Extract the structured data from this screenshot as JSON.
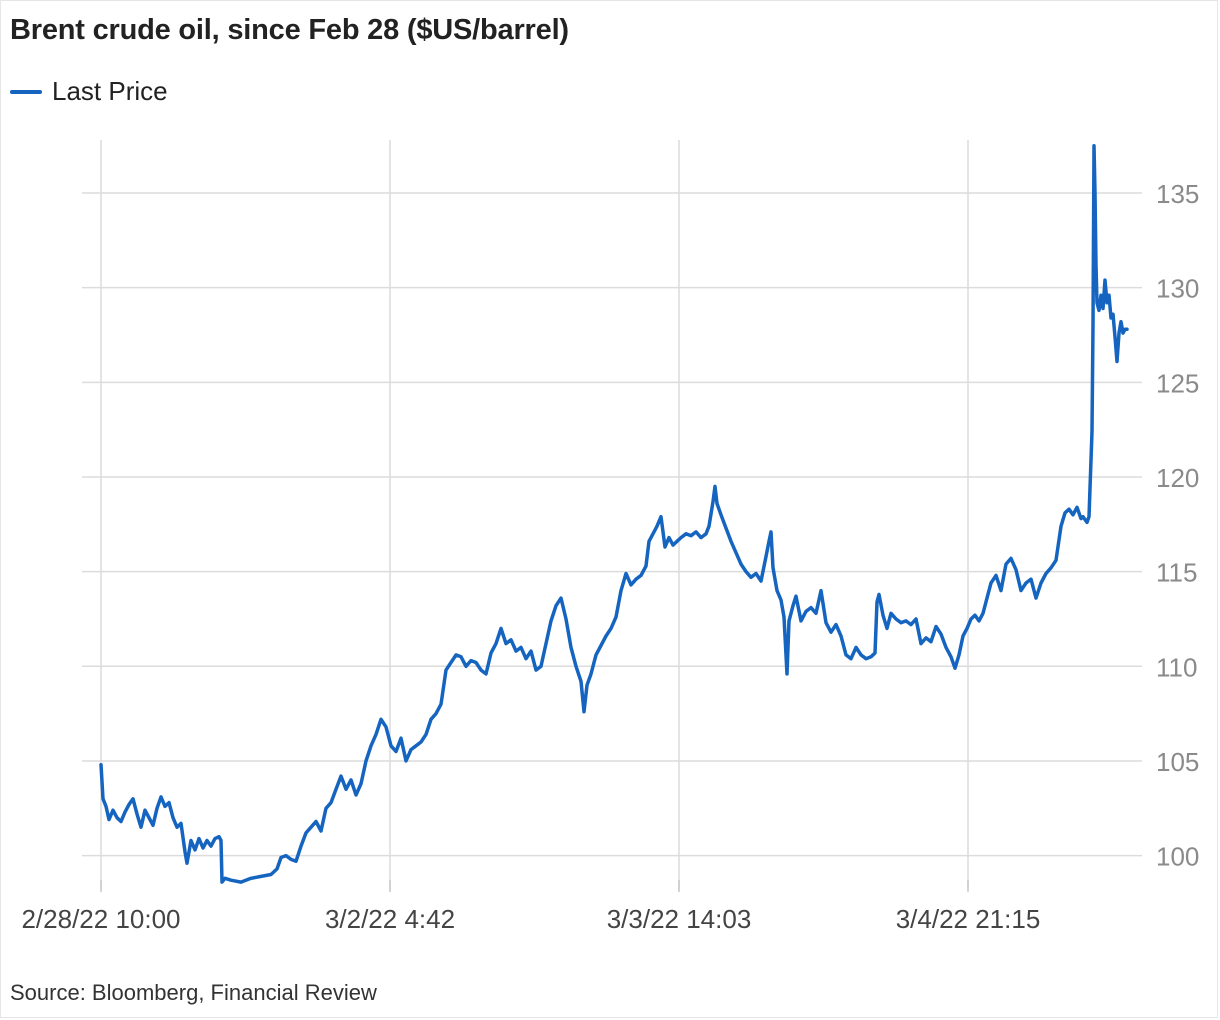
{
  "colors": {
    "line": "#1565c0",
    "grid": "#dcdcdc",
    "tick_text": "#8a8a8a"
  },
  "chart_data": {
    "type": "line",
    "title": "Brent crude oil, since Feb 28 ($US/barrel)",
    "legend_position": "top-left",
    "grid": true,
    "series": [
      {
        "name": "Last Price",
        "points": [
          [
            0,
            104.8
          ],
          [
            2,
            103.0
          ],
          [
            5,
            102.6
          ],
          [
            8,
            101.9
          ],
          [
            12,
            102.4
          ],
          [
            16,
            102.0
          ],
          [
            20,
            101.8
          ],
          [
            24,
            102.3
          ],
          [
            28,
            102.7
          ],
          [
            32,
            103.0
          ],
          [
            36,
            102.2
          ],
          [
            40,
            101.5
          ],
          [
            44,
            102.4
          ],
          [
            48,
            102.0
          ],
          [
            52,
            101.6
          ],
          [
            56,
            102.5
          ],
          [
            60,
            103.1
          ],
          [
            64,
            102.6
          ],
          [
            68,
            102.8
          ],
          [
            72,
            102.0
          ],
          [
            76,
            101.5
          ],
          [
            80,
            101.7
          ],
          [
            84,
            100.2
          ],
          [
            86,
            99.6
          ],
          [
            90,
            100.8
          ],
          [
            94,
            100.3
          ],
          [
            98,
            100.9
          ],
          [
            102,
            100.4
          ],
          [
            106,
            100.8
          ],
          [
            110,
            100.5
          ],
          [
            114,
            100.9
          ],
          [
            118,
            101.0
          ],
          [
            120,
            100.8
          ],
          [
            121,
            98.6
          ],
          [
            124,
            98.8
          ],
          [
            130,
            98.7
          ],
          [
            140,
            98.6
          ],
          [
            150,
            98.8
          ],
          [
            160,
            98.9
          ],
          [
            170,
            99.0
          ],
          [
            176,
            99.3
          ],
          [
            180,
            99.9
          ],
          [
            185,
            100.0
          ],
          [
            190,
            99.8
          ],
          [
            195,
            99.7
          ],
          [
            200,
            100.5
          ],
          [
            205,
            101.2
          ],
          [
            210,
            101.5
          ],
          [
            215,
            101.8
          ],
          [
            220,
            101.3
          ],
          [
            225,
            102.5
          ],
          [
            230,
            102.8
          ],
          [
            235,
            103.5
          ],
          [
            240,
            104.2
          ],
          [
            245,
            103.5
          ],
          [
            250,
            104.0
          ],
          [
            255,
            103.2
          ],
          [
            260,
            103.8
          ],
          [
            265,
            105.0
          ],
          [
            270,
            105.8
          ],
          [
            275,
            106.4
          ],
          [
            280,
            107.2
          ],
          [
            285,
            106.8
          ],
          [
            290,
            105.8
          ],
          [
            295,
            105.5
          ],
          [
            300,
            106.2
          ],
          [
            305,
            105.0
          ],
          [
            310,
            105.6
          ],
          [
            315,
            105.8
          ],
          [
            320,
            106.0
          ],
          [
            325,
            106.4
          ],
          [
            330,
            107.2
          ],
          [
            335,
            107.5
          ],
          [
            340,
            108.0
          ],
          [
            345,
            109.8
          ],
          [
            350,
            110.2
          ],
          [
            355,
            110.6
          ],
          [
            360,
            110.5
          ],
          [
            365,
            110.0
          ],
          [
            370,
            110.3
          ],
          [
            375,
            110.2
          ],
          [
            380,
            109.8
          ],
          [
            385,
            109.6
          ],
          [
            390,
            110.7
          ],
          [
            395,
            111.2
          ],
          [
            400,
            112.0
          ],
          [
            405,
            111.2
          ],
          [
            410,
            111.4
          ],
          [
            415,
            110.8
          ],
          [
            420,
            111.0
          ],
          [
            425,
            110.4
          ],
          [
            430,
            110.8
          ],
          [
            435,
            109.8
          ],
          [
            440,
            110.0
          ],
          [
            445,
            111.2
          ],
          [
            450,
            112.4
          ],
          [
            455,
            113.2
          ],
          [
            460,
            113.6
          ],
          [
            465,
            112.5
          ],
          [
            470,
            111.0
          ],
          [
            475,
            110.0
          ],
          [
            480,
            109.2
          ],
          [
            483,
            107.6
          ],
          [
            486,
            109.0
          ],
          [
            490,
            109.6
          ],
          [
            495,
            110.6
          ],
          [
            500,
            111.1
          ],
          [
            505,
            111.6
          ],
          [
            510,
            112.0
          ],
          [
            515,
            112.6
          ],
          [
            520,
            114.0
          ],
          [
            525,
            114.9
          ],
          [
            530,
            114.3
          ],
          [
            535,
            114.6
          ],
          [
            540,
            114.8
          ],
          [
            545,
            115.3
          ],
          [
            548,
            116.6
          ],
          [
            552,
            117.0
          ],
          [
            556,
            117.4
          ],
          [
            560,
            117.9
          ],
          [
            564,
            116.3
          ],
          [
            568,
            116.8
          ],
          [
            572,
            116.4
          ],
          [
            576,
            116.6
          ],
          [
            580,
            116.8
          ],
          [
            585,
            117.0
          ],
          [
            590,
            116.9
          ],
          [
            595,
            117.1
          ],
          [
            600,
            116.8
          ],
          [
            605,
            117.0
          ],
          [
            608,
            117.4
          ],
          [
            612,
            118.7
          ],
          [
            614,
            119.5
          ],
          [
            616,
            118.6
          ],
          [
            620,
            118.0
          ],
          [
            625,
            117.3
          ],
          [
            630,
            116.6
          ],
          [
            635,
            116.0
          ],
          [
            640,
            115.4
          ],
          [
            645,
            115.0
          ],
          [
            650,
            114.7
          ],
          [
            655,
            114.9
          ],
          [
            660,
            114.5
          ],
          [
            665,
            115.8
          ],
          [
            668,
            116.6
          ],
          [
            670,
            117.1
          ],
          [
            672,
            115.2
          ],
          [
            676,
            114.0
          ],
          [
            680,
            113.5
          ],
          [
            683,
            112.6
          ],
          [
            686,
            109.6
          ],
          [
            688,
            112.4
          ],
          [
            692,
            113.2
          ],
          [
            695,
            113.7
          ],
          [
            700,
            112.4
          ],
          [
            705,
            112.9
          ],
          [
            710,
            113.1
          ],
          [
            715,
            112.8
          ],
          [
            720,
            114.0
          ],
          [
            725,
            112.3
          ],
          [
            730,
            111.8
          ],
          [
            735,
            112.2
          ],
          [
            740,
            111.6
          ],
          [
            745,
            110.6
          ],
          [
            750,
            110.4
          ],
          [
            755,
            111.0
          ],
          [
            760,
            110.6
          ],
          [
            765,
            110.4
          ],
          [
            770,
            110.5
          ],
          [
            774,
            110.7
          ],
          [
            776,
            113.4
          ],
          [
            778,
            113.8
          ],
          [
            782,
            112.7
          ],
          [
            786,
            112.0
          ],
          [
            790,
            112.8
          ],
          [
            795,
            112.5
          ],
          [
            800,
            112.3
          ],
          [
            805,
            112.4
          ],
          [
            810,
            112.2
          ],
          [
            815,
            112.5
          ],
          [
            820,
            111.2
          ],
          [
            825,
            111.5
          ],
          [
            830,
            111.3
          ],
          [
            835,
            112.1
          ],
          [
            840,
            111.7
          ],
          [
            845,
            111.0
          ],
          [
            850,
            110.5
          ],
          [
            854,
            109.9
          ],
          [
            858,
            110.6
          ],
          [
            862,
            111.6
          ],
          [
            866,
            112.0
          ],
          [
            870,
            112.5
          ],
          [
            874,
            112.7
          ],
          [
            878,
            112.4
          ],
          [
            882,
            112.8
          ],
          [
            886,
            113.6
          ],
          [
            890,
            114.4
          ],
          [
            895,
            114.8
          ],
          [
            900,
            114.0
          ],
          [
            905,
            115.4
          ],
          [
            910,
            115.7
          ],
          [
            915,
            115.1
          ],
          [
            920,
            114.0
          ],
          [
            925,
            114.4
          ],
          [
            930,
            114.6
          ],
          [
            935,
            113.6
          ],
          [
            940,
            114.4
          ],
          [
            945,
            114.9
          ],
          [
            950,
            115.2
          ],
          [
            955,
            115.6
          ],
          [
            960,
            117.4
          ],
          [
            964,
            118.1
          ],
          [
            968,
            118.3
          ],
          [
            972,
            118.0
          ],
          [
            976,
            118.4
          ],
          [
            980,
            117.8
          ],
          [
            982,
            117.9
          ],
          [
            986,
            117.6
          ],
          [
            988,
            117.9
          ],
          [
            991,
            122.4
          ],
          [
            992,
            128.0
          ],
          [
            993,
            137.5
          ],
          [
            994,
            135.0
          ],
          [
            995,
            131.2
          ],
          [
            996,
            129.2
          ],
          [
            998,
            128.8
          ],
          [
            1000,
            129.6
          ],
          [
            1002,
            128.9
          ],
          [
            1004,
            130.4
          ],
          [
            1006,
            129.2
          ],
          [
            1008,
            129.6
          ],
          [
            1010,
            128.4
          ],
          [
            1012,
            128.6
          ],
          [
            1014,
            127.4
          ],
          [
            1016,
            126.1
          ],
          [
            1018,
            127.6
          ],
          [
            1020,
            128.2
          ],
          [
            1022,
            127.6
          ],
          [
            1024,
            127.8
          ],
          [
            1026,
            127.8
          ]
        ]
      }
    ],
    "ylim": [
      98.5,
      137.8
    ],
    "y_ticks": [
      100,
      105,
      110,
      115,
      120,
      125,
      130,
      135
    ],
    "y_tick_labels": [
      "100",
      "105",
      "110",
      "115",
      "120",
      "125",
      "130",
      "135"
    ],
    "x_ticks": [
      0,
      289,
      578,
      867
    ],
    "x_tick_labels": [
      "2/28/22 10:00",
      "3/2/22 4:42",
      "3/3/22 14:03",
      "3/4/22 21:15"
    ],
    "xlim": [
      0,
      1026
    ]
  },
  "source": "Source: Bloomberg, Financial Review"
}
